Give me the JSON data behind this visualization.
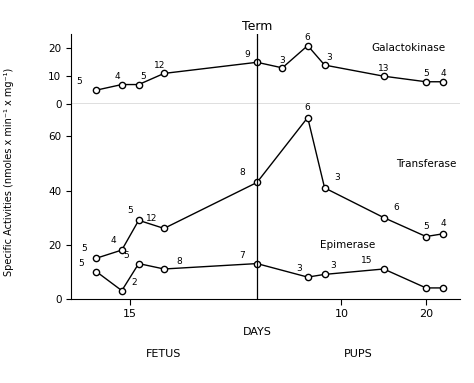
{
  "galactokinase": {
    "x": [
      -19,
      -16,
      -14,
      -11,
      0,
      3,
      6,
      8,
      15,
      20,
      22
    ],
    "y": [
      5,
      7,
      7,
      11,
      15,
      13,
      21,
      14,
      10,
      8,
      8
    ],
    "n": [
      "5",
      "4",
      "5",
      "12",
      "9",
      "3",
      "6",
      "3",
      "13",
      "5",
      "4"
    ],
    "label": "Galactokinase"
  },
  "transferase": {
    "x": [
      -19,
      -16,
      -14,
      -11,
      0,
      6,
      8,
      15,
      20,
      22
    ],
    "y": [
      15,
      18,
      29,
      26,
      43,
      67,
      41,
      30,
      23,
      24
    ],
    "n": [
      "5",
      "4",
      "5",
      "12",
      "8",
      "6",
      "3",
      "6",
      "5",
      "4"
    ],
    "label": "Transferase"
  },
  "epimerase": {
    "x": [
      -19,
      -16,
      -14,
      -11,
      0,
      6,
      8,
      15,
      20,
      22
    ],
    "y": [
      10,
      3,
      13,
      11,
      13,
      8,
      9,
      11,
      4,
      4
    ],
    "n": [
      "5",
      "2",
      "5",
      "8",
      "7",
      "3",
      "3",
      "15",
      "",
      ""
    ],
    "label": "Epimerase"
  },
  "background_color": "#ffffff",
  "line_color": "#000000"
}
